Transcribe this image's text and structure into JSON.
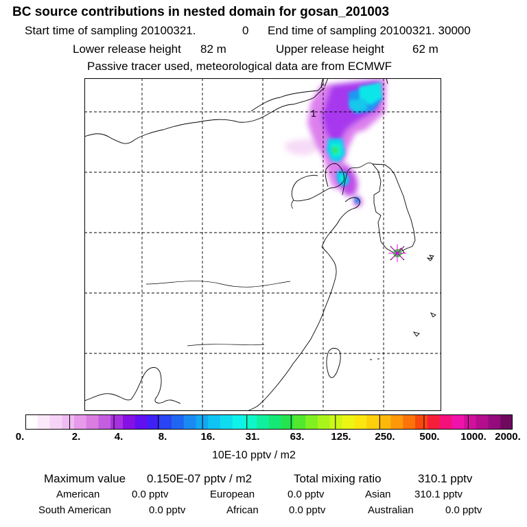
{
  "header": {
    "title": "BC  source contributions in nested domain for gosan_201003",
    "start_label": "Start time of sampling 20100321.",
    "start_hour": "0",
    "end_label": "End time of sampling 20100321. 30000",
    "lower_label": "Lower release height",
    "lower_value": "82 m",
    "upper_label": "Upper release height",
    "upper_value": "62 m",
    "tracer_note": "Passive tracer used, meteorological data are from ECMWF"
  },
  "map": {
    "contour_label": "1",
    "receptor": "gosan"
  },
  "colorbar": {
    "labels": [
      "0.",
      "2.",
      "4.",
      "8.",
      "16.",
      "31.",
      "63.",
      "125.",
      "250.",
      "500.",
      "1000.",
      "2000."
    ],
    "colors": [
      "#ffffff",
      "#fbe9fb",
      "#f6d3f6",
      "#efbcf1",
      "#e79ae9",
      "#d97de0",
      "#c45de0",
      "#a731e0",
      "#8611e5",
      "#6010f1",
      "#3f21f5",
      "#2a44f4",
      "#2066f2",
      "#1a8af2",
      "#13a8f2",
      "#10c4f2",
      "#10dcf0",
      "#0ff2ea",
      "#0ff6c8",
      "#10f09e",
      "#16e876",
      "#24e34c",
      "#52e82e",
      "#80f020",
      "#a8f41c",
      "#cdf717",
      "#ecf612",
      "#fbe70e",
      "#fcd10c",
      "#fdb80b",
      "#fd980a",
      "#fc730a",
      "#f9480c",
      "#f71e3a",
      "#f5117a",
      "#ef13ac",
      "#d2109c",
      "#b40e8e",
      "#940b7c",
      "#6e095e"
    ],
    "units": "10E-10 pptv / m2"
  },
  "stats": {
    "max_label": "Maximum value",
    "max_value": "0.150E-07 pptv / m2",
    "total_label": "Total mixing ratio",
    "total_value": "310.1 pptv",
    "american_label": "American",
    "american_value": "0.0 pptv",
    "european_label": "European",
    "european_value": "0.0 pptv",
    "asian_label": "Asian",
    "asian_value": "310.1 pptv",
    "south_american_label": "South American",
    "south_american_value": "0.0 pptv",
    "african_label": "African",
    "african_value": "0.0 pptv",
    "australian_label": "Australian",
    "australian_value": "0.0 pptv"
  }
}
